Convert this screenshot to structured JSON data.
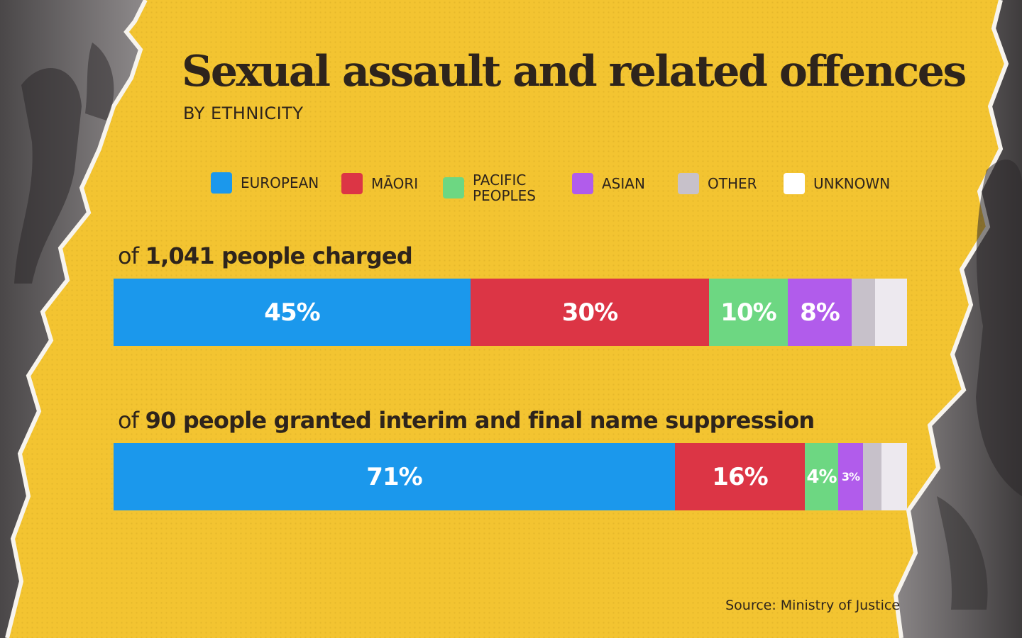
{
  "colors": {
    "background": "#f3c431",
    "text": "#2e241c",
    "european": "#1b98ec",
    "maori": "#dc3545",
    "pacific": "#6dd782",
    "asian": "#b15ceb",
    "other": "#c7c1ca",
    "unknown": "#ede9ef"
  },
  "header": {
    "title": "Sexual assault and related offences",
    "subtitle": "BY ETHNICITY"
  },
  "legend": [
    {
      "label": "EUROPEAN",
      "color": "#1b98ec"
    },
    {
      "label": "MĀORI",
      "color": "#dc3545"
    },
    {
      "label": "PACIFIC\nPEOPLES",
      "color": "#6dd782"
    },
    {
      "label": "ASIAN",
      "color": "#b15ceb"
    },
    {
      "label": "OTHER",
      "color": "#c7c1ca"
    },
    {
      "label": "UNKNOWN",
      "color": "#ffffff"
    }
  ],
  "chart_data": [
    {
      "type": "bar",
      "stacked": "horizontal-100%",
      "title_prefix": "of ",
      "title_bold": "1,041 people charged",
      "categories": [
        "EUROPEAN",
        "MĀORI",
        "PACIFIC PEOPLES",
        "ASIAN",
        "OTHER",
        "UNKNOWN"
      ],
      "values": [
        45,
        30,
        10,
        8,
        3,
        4
      ],
      "data_labels": [
        "45%",
        "30%",
        "10%",
        "8%",
        "",
        ""
      ],
      "colors": [
        "#1b98ec",
        "#dc3545",
        "#6dd782",
        "#b15ceb",
        "#c7c1ca",
        "#ede9ef"
      ]
    },
    {
      "type": "bar",
      "stacked": "horizontal-100%",
      "title_prefix": "of ",
      "title_bold": "90 people granted interim and final name suppression",
      "categories": [
        "EUROPEAN",
        "MĀORI",
        "PACIFIC PEOPLES",
        "ASIAN",
        "OTHER",
        "UNKNOWN"
      ],
      "values": [
        71,
        16.5,
        4.2,
        3.1,
        2.4,
        3.2
      ],
      "data_labels": [
        "71%",
        "16%",
        "4%",
        "3%",
        "",
        ""
      ],
      "colors": [
        "#1b98ec",
        "#dc3545",
        "#6dd782",
        "#b15ceb",
        "#c7c1ca",
        "#ede9ef"
      ]
    }
  ],
  "footer": {
    "source": "Source: Ministry of Justice"
  }
}
